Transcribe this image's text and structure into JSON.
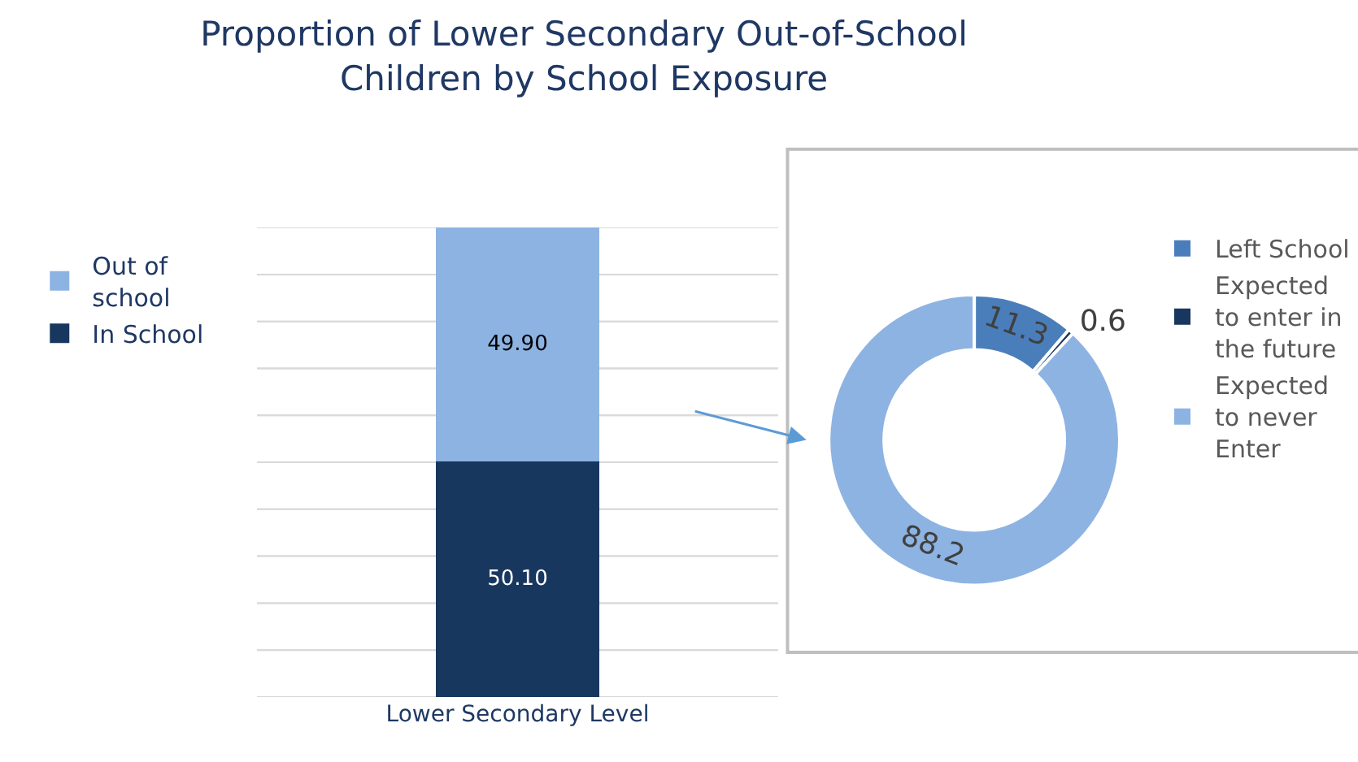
{
  "chart_data": [
    {
      "type": "bar",
      "title": "Proportion of Lower Secondary Out-of-School\nChildren by School Exposure",
      "categories": [
        "Lower Secondary Level"
      ],
      "stacked": true,
      "series": [
        {
          "name": "In School",
          "color": "#17375e",
          "values": [
            50.1
          ],
          "value_labels": [
            "50.10"
          ]
        },
        {
          "name": "Out of\nschool",
          "color": "#8db3e2",
          "values": [
            49.9
          ],
          "value_labels": [
            "49.90"
          ]
        }
      ],
      "ylim": [
        0,
        100
      ],
      "yticks": [
        {
          "value": 0,
          "label": null
        },
        {
          "value": 10,
          "label": null
        },
        {
          "value": 20,
          "label": null
        },
        {
          "value": 30,
          "label": null
        },
        {
          "value": 40,
          "label": null
        },
        {
          "value": 50,
          "label": null
        },
        {
          "value": 60,
          "label": null
        },
        {
          "value": 70,
          "label": null
        },
        {
          "value": 80,
          "label": null
        },
        {
          "value": 90,
          "label": null
        },
        {
          "value": 100,
          "label": null
        }
      ],
      "tick_labels": "x",
      "grid": "y",
      "legend": "left"
    },
    {
      "type": "donut",
      "categories": [
        "Left School",
        "Expected\nto enter in\nthe future",
        "Expected\nto never\nEnter"
      ],
      "values": [
        11.3,
        0.6,
        88.2
      ],
      "colors": [
        "#4a7ebb",
        "#17375e",
        "#8db3e2"
      ],
      "data_labels": true,
      "legend": "right"
    }
  ]
}
